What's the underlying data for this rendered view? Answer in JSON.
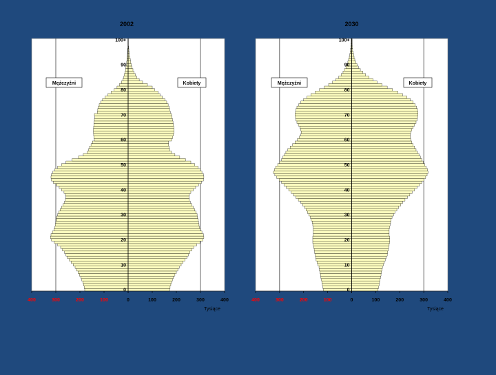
{
  "colors": {
    "background": "#1f497d",
    "plot_area": "#ffffff",
    "bar_fill": "#ffffc0",
    "bar_stroke": "#000000",
    "negative_tick": "#ff0000",
    "positive_tick": "#000000"
  },
  "chart_data": [
    {
      "type": "bar",
      "orientation": "horizontal",
      "title": "2002",
      "xlabel": "Tysiące",
      "xlim": [
        -400,
        400
      ],
      "xticks": [
        -400,
        -300,
        -200,
        -100,
        0,
        100,
        200,
        300,
        400
      ],
      "xtick_labels": [
        "400",
        "300",
        "200",
        "100",
        "0",
        "100",
        "200",
        "300",
        "400"
      ],
      "age_ticks": [
        "0",
        "10",
        "20",
        "30",
        "40",
        "50",
        "60",
        "70",
        "80",
        "90",
        "100+"
      ],
      "ages": [
        0,
        1,
        2,
        3,
        4,
        5,
        6,
        7,
        8,
        9,
        10,
        11,
        12,
        13,
        14,
        15,
        16,
        17,
        18,
        19,
        20,
        21,
        22,
        23,
        24,
        25,
        26,
        27,
        28,
        29,
        30,
        31,
        32,
        33,
        34,
        35,
        36,
        37,
        38,
        39,
        40,
        41,
        42,
        43,
        44,
        45,
        46,
        47,
        48,
        49,
        50,
        51,
        52,
        53,
        54,
        55,
        56,
        57,
        58,
        59,
        60,
        61,
        62,
        63,
        64,
        65,
        66,
        67,
        68,
        69,
        70,
        71,
        72,
        73,
        74,
        75,
        76,
        77,
        78,
        79,
        80,
        81,
        82,
        83,
        84,
        85,
        86,
        87,
        88,
        89,
        90,
        91,
        92,
        93,
        94,
        95,
        96,
        97,
        98,
        99,
        100
      ],
      "series": [
        {
          "name": "Mężczyźni",
          "values": [
            180,
            182,
            185,
            188,
            192,
            196,
            202,
            208,
            214,
            220,
            228,
            236,
            244,
            252,
            258,
            264,
            272,
            280,
            292,
            306,
            318,
            322,
            320,
            314,
            308,
            304,
            302,
            300,
            298,
            296,
            292,
            288,
            282,
            276,
            270,
            264,
            260,
            258,
            260,
            266,
            276,
            286,
            298,
            310,
            318,
            320,
            318,
            312,
            304,
            292,
            276,
            258,
            232,
            206,
            186,
            170,
            164,
            160,
            154,
            148,
            140,
            142,
            143,
            144,
            144,
            143,
            142,
            141,
            140,
            138,
            140,
            128,
            126,
            124,
            120,
            114,
            106,
            96,
            84,
            70,
            58,
            46,
            36,
            28,
            22,
            18,
            16,
            13,
            11,
            9,
            7,
            6,
            5,
            4,
            3,
            2,
            2,
            1,
            1,
            1,
            1
          ]
        },
        {
          "name": "Kobiety",
          "values": [
            172,
            174,
            177,
            180,
            184,
            188,
            194,
            200,
            206,
            212,
            220,
            228,
            236,
            244,
            250,
            256,
            264,
            272,
            284,
            298,
            310,
            314,
            312,
            306,
            300,
            296,
            294,
            292,
            290,
            288,
            286,
            282,
            276,
            270,
            264,
            258,
            254,
            252,
            254,
            260,
            270,
            280,
            292,
            304,
            312,
            314,
            312,
            306,
            300,
            290,
            276,
            260,
            238,
            214,
            194,
            180,
            172,
            170,
            168,
            168,
            180,
            185,
            188,
            190,
            190,
            189,
            188,
            186,
            184,
            182,
            180,
            175,
            172,
            170,
            166,
            160,
            152,
            142,
            132,
            124,
            110,
            100,
            80,
            60,
            46,
            36,
            30,
            24,
            20,
            16,
            13,
            11,
            9,
            7,
            5,
            4,
            3,
            2,
            1,
            1,
            1
          ]
        }
      ]
    },
    {
      "type": "bar",
      "orientation": "horizontal",
      "title": "2030",
      "xlabel": "Tysiące",
      "xlim": [
        -400,
        400
      ],
      "xticks": [
        -400,
        -300,
        -200,
        -100,
        0,
        100,
        200,
        300,
        400
      ],
      "xtick_labels": [
        "400",
        "300",
        "200",
        "100",
        "0",
        "100",
        "200",
        "300",
        "400"
      ],
      "age_ticks": [
        "0",
        "10",
        "20",
        "30",
        "40",
        "50",
        "60",
        "70",
        "80",
        "90",
        "100+"
      ],
      "ages": [
        0,
        1,
        2,
        3,
        4,
        5,
        6,
        7,
        8,
        9,
        10,
        11,
        12,
        13,
        14,
        15,
        16,
        17,
        18,
        19,
        20,
        21,
        22,
        23,
        24,
        25,
        26,
        27,
        28,
        29,
        30,
        31,
        32,
        33,
        34,
        35,
        36,
        37,
        38,
        39,
        40,
        41,
        42,
        43,
        44,
        45,
        46,
        47,
        48,
        49,
        50,
        51,
        52,
        53,
        54,
        55,
        56,
        57,
        58,
        59,
        60,
        61,
        62,
        63,
        64,
        65,
        66,
        67,
        68,
        69,
        70,
        71,
        72,
        73,
        74,
        75,
        76,
        77,
        78,
        79,
        80,
        81,
        82,
        83,
        84,
        85,
        86,
        87,
        88,
        89,
        90,
        91,
        92,
        93,
        94,
        95,
        96,
        97,
        98,
        99,
        100
      ],
      "series": [
        {
          "name": "Mężczyźni",
          "values": [
            118,
            120,
            122,
            124,
            126,
            128,
            130,
            132,
            134,
            136,
            140,
            144,
            148,
            150,
            152,
            154,
            156,
            158,
            160,
            162,
            162,
            162,
            160,
            160,
            160,
            160,
            162,
            164,
            168,
            172,
            178,
            184,
            190,
            196,
            204,
            212,
            222,
            232,
            242,
            252,
            262,
            272,
            282,
            292,
            302,
            312,
            320,
            326,
            322,
            316,
            308,
            300,
            292,
            286,
            280,
            274,
            266,
            256,
            246,
            236,
            226,
            218,
            212,
            210,
            212,
            216,
            222,
            228,
            232,
            234,
            236,
            234,
            232,
            228,
            220,
            212,
            200,
            186,
            170,
            152,
            134,
            114,
            96,
            80,
            66,
            54,
            44,
            36,
            30,
            24,
            20,
            16,
            13,
            10,
            8,
            6,
            5,
            4,
            3,
            2,
            2
          ]
        },
        {
          "name": "Kobiety",
          "values": [
            110,
            112,
            114,
            116,
            118,
            120,
            122,
            124,
            126,
            128,
            132,
            136,
            140,
            144,
            148,
            150,
            152,
            154,
            156,
            158,
            158,
            158,
            156,
            156,
            156,
            158,
            160,
            162,
            164,
            168,
            174,
            180,
            188,
            196,
            204,
            212,
            222,
            232,
            242,
            252,
            262,
            272,
            282,
            292,
            300,
            308,
            314,
            318,
            316,
            310,
            304,
            298,
            292,
            286,
            280,
            274,
            268,
            262,
            256,
            250,
            246,
            244,
            244,
            246,
            250,
            256,
            262,
            268,
            272,
            274,
            276,
            276,
            274,
            270,
            264,
            256,
            244,
            230,
            212,
            192,
            170,
            148,
            126,
            106,
            88,
            72,
            58,
            46,
            36,
            28,
            22,
            17,
            13,
            10,
            8,
            6,
            4,
            3,
            2,
            2,
            2
          ]
        }
      ]
    }
  ]
}
